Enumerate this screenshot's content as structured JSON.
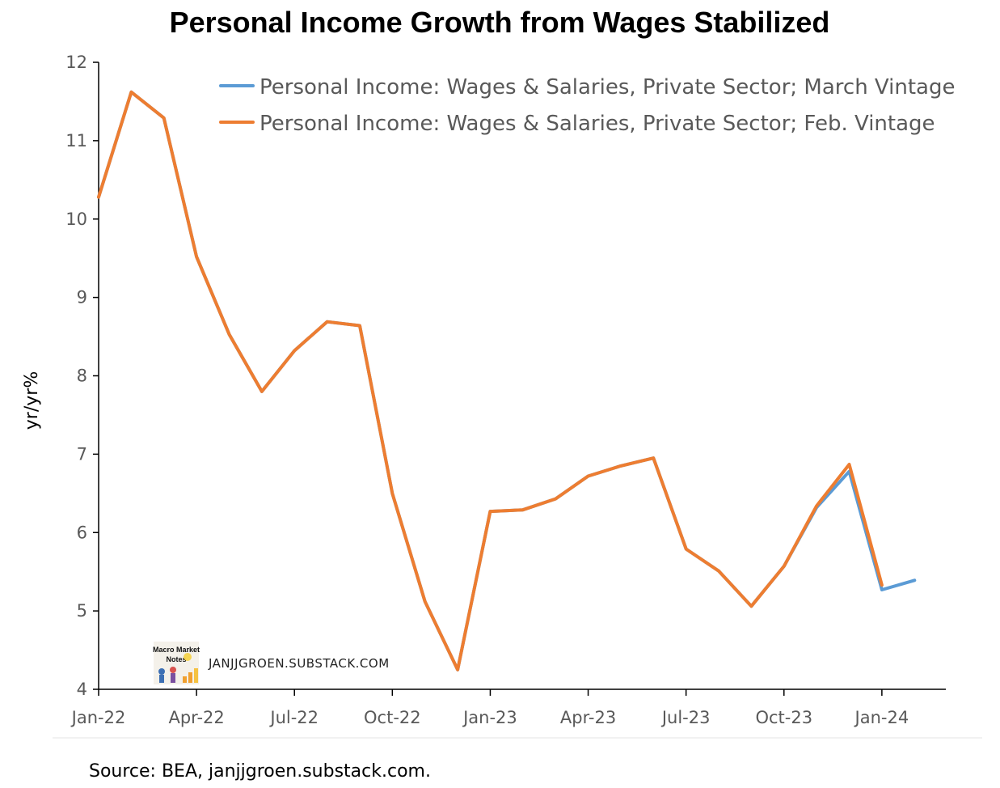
{
  "colors": {
    "march_vintage": "#5B9BD5",
    "feb_vintage": "#ED7D31",
    "axis": "#000000",
    "tick_text": "#595959"
  },
  "watermark": {
    "logo_text_line1": "Macro Market",
    "logo_text_line2": "Notes",
    "text": "JANJJGROEN.SUBSTACK.COM"
  },
  "source": "Source: BEA, janjjgroen.substack.com.",
  "chart_data": {
    "type": "line",
    "title": "Personal Income Growth from Wages Stabilized",
    "xlabel": "",
    "ylabel": "yr/yr%",
    "ylim": [
      4,
      12
    ],
    "yticks": [
      4,
      5,
      6,
      7,
      8,
      9,
      10,
      11,
      12
    ],
    "x": [
      "2022-01",
      "2022-02",
      "2022-03",
      "2022-04",
      "2022-05",
      "2022-06",
      "2022-07",
      "2022-08",
      "2022-09",
      "2022-10",
      "2022-11",
      "2022-12",
      "2023-01",
      "2023-02",
      "2023-03",
      "2023-04",
      "2023-05",
      "2023-06",
      "2023-07",
      "2023-08",
      "2023-09",
      "2023-10",
      "2023-11",
      "2023-12",
      "2024-01",
      "2024-02"
    ],
    "xtick_labels": [
      {
        "x": "2022-01",
        "label": "Jan-22"
      },
      {
        "x": "2022-04",
        "label": "Apr-22"
      },
      {
        "x": "2022-07",
        "label": "Jul-22"
      },
      {
        "x": "2022-10",
        "label": "Oct-22"
      },
      {
        "x": "2023-01",
        "label": "Jan-23"
      },
      {
        "x": "2023-04",
        "label": "Apr-23"
      },
      {
        "x": "2023-07",
        "label": "Jul-23"
      },
      {
        "x": "2023-10",
        "label": "Oct-23"
      },
      {
        "x": "2024-01",
        "label": "Jan-24"
      }
    ],
    "grid": false,
    "legend_position": "top-right",
    "series": [
      {
        "name": "Personal Income: Wages & Salaries, Private Sector; March Vintage",
        "color": "#5B9BD5",
        "values": [
          10.28,
          11.62,
          11.29,
          9.52,
          8.53,
          7.8,
          8.32,
          8.69,
          8.64,
          6.5,
          5.12,
          4.25,
          6.27,
          6.29,
          6.43,
          6.72,
          6.85,
          6.95,
          5.79,
          5.51,
          5.06,
          5.57,
          6.32,
          6.78,
          5.27,
          5.39
        ]
      },
      {
        "name": "Personal Income: Wages & Salaries, Private Sector; Feb. Vintage",
        "color": "#ED7D31",
        "values": [
          10.28,
          11.62,
          11.29,
          9.52,
          8.53,
          7.8,
          8.32,
          8.69,
          8.64,
          6.5,
          5.12,
          4.25,
          6.27,
          6.29,
          6.43,
          6.72,
          6.85,
          6.95,
          5.79,
          5.51,
          5.06,
          5.57,
          6.34,
          6.87,
          5.33,
          null
        ]
      }
    ]
  }
}
